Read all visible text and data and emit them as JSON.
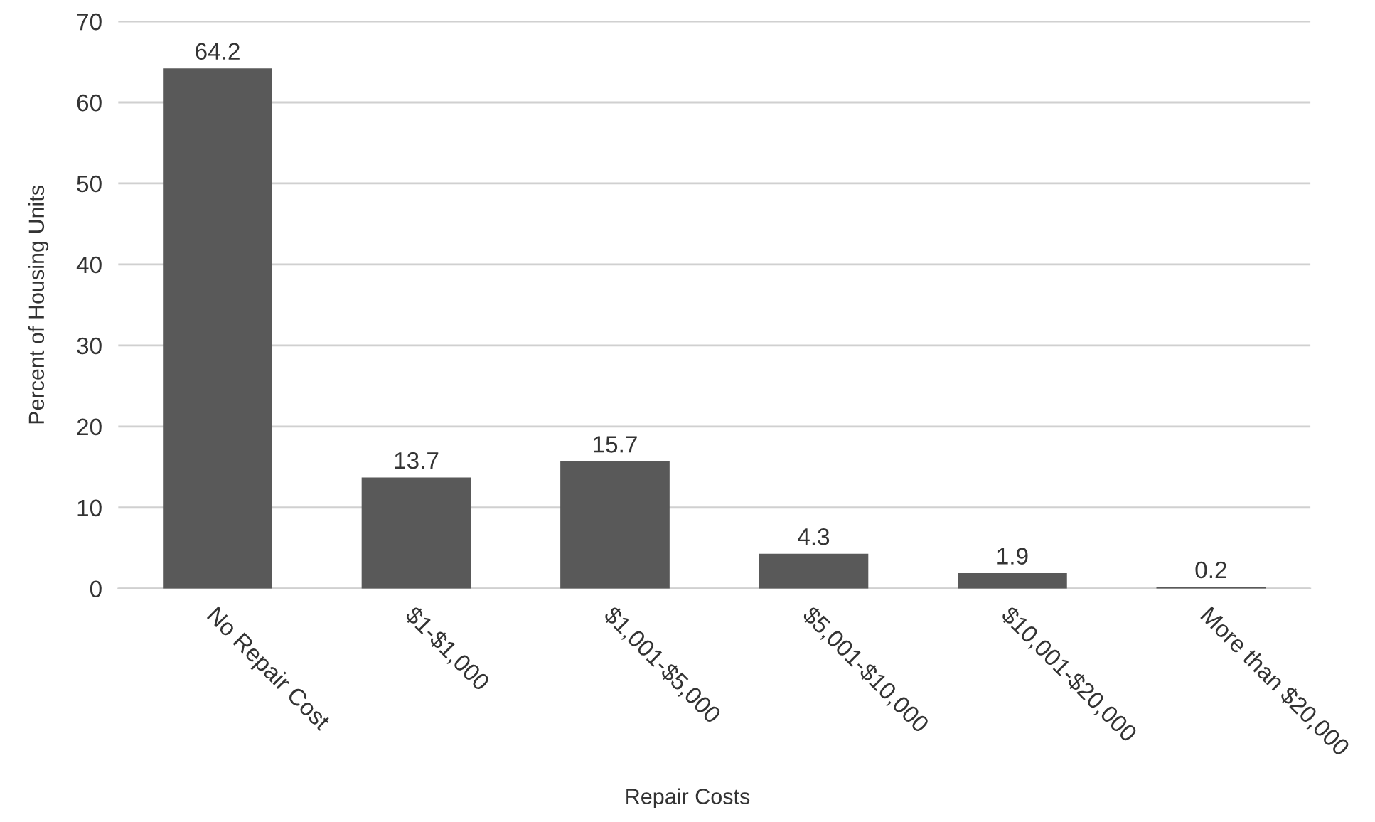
{
  "chart_data": {
    "type": "bar",
    "xlabel": "Repair Costs",
    "ylabel": "Percent of Housing Units",
    "categories": [
      "No Repair Cost",
      "$1-$1,000",
      "$1,001-$5,000",
      "$5,001-$10,000",
      "$10,001-$20,000",
      "More than $20,000"
    ],
    "values": [
      64.2,
      13.7,
      15.7,
      4.3,
      1.9,
      0.2
    ],
    "color": "#595959",
    "ylim": [
      0,
      70
    ],
    "yticks": [
      0,
      10,
      20,
      30,
      40,
      50,
      60,
      70
    ],
    "grid": "y",
    "data_labels": true
  }
}
